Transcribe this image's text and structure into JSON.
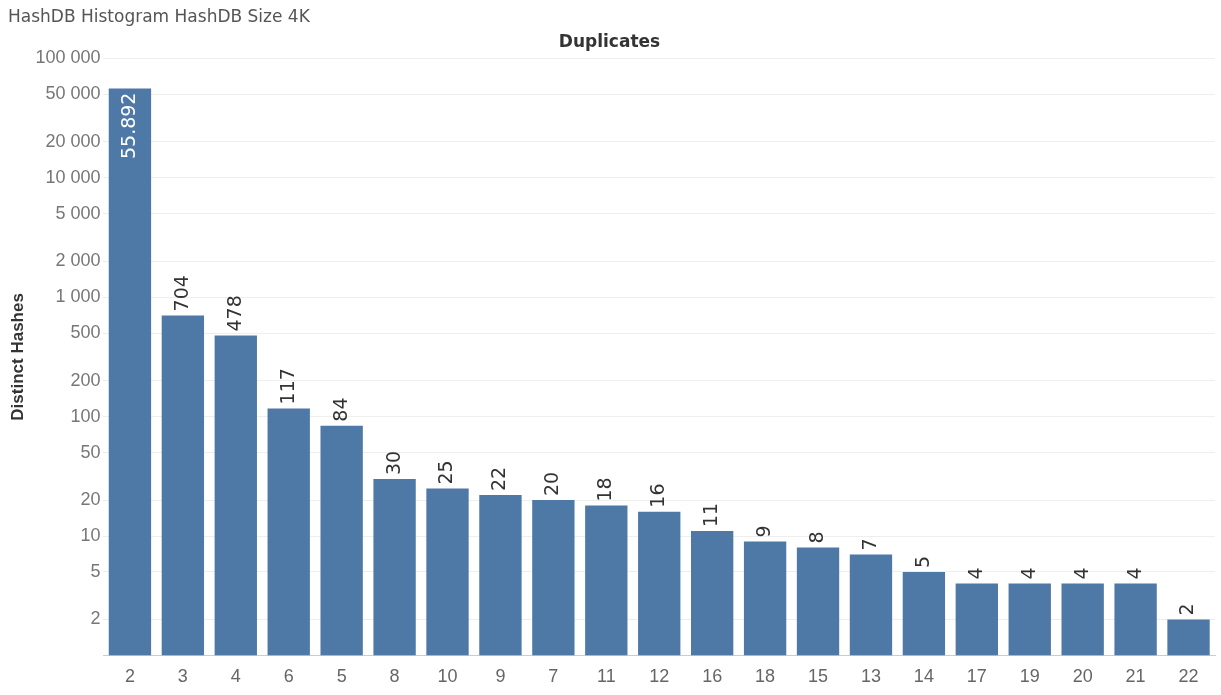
{
  "chart_data": {
    "type": "bar",
    "title": "HashDB Histogram HashDB Size 4K",
    "xlabel": "Duplicates",
    "ylabel": "Distinct Hashes",
    "categories": [
      "2",
      "3",
      "4",
      "6",
      "5",
      "8",
      "10",
      "9",
      "7",
      "11",
      "12",
      "16",
      "18",
      "15",
      "13",
      "14",
      "17",
      "19",
      "20",
      "21",
      "22"
    ],
    "values": [
      55892,
      704,
      478,
      117,
      84,
      30,
      25,
      22,
      20,
      18,
      16,
      11,
      9,
      8,
      7,
      5,
      4,
      4,
      4,
      4,
      2
    ],
    "value_labels": [
      "55.892",
      "704",
      "478",
      "117",
      "84",
      "30",
      "25",
      "22",
      "20",
      "18",
      "16",
      "11",
      "9",
      "8",
      "7",
      "5",
      "4",
      "4",
      "4",
      "4",
      "2"
    ],
    "color": "#4e79a7",
    "log": "y",
    "ylim": [
      1,
      100000
    ],
    "yticks": [
      2,
      5,
      10,
      20,
      50,
      100,
      200,
      500,
      {
        "value": 1000,
        "label": "1 000"
      },
      {
        "value": 2000,
        "label": "2 000"
      },
      {
        "value": 5000,
        "label": "5 000"
      },
      {
        "value": 10000,
        "label": "10 000"
      },
      {
        "value": 20000,
        "label": "20 000"
      },
      {
        "value": 50000,
        "label": "50 000"
      },
      {
        "value": 100000,
        "label": "100 000"
      }
    ],
    "grid": "y",
    "legend": false
  }
}
